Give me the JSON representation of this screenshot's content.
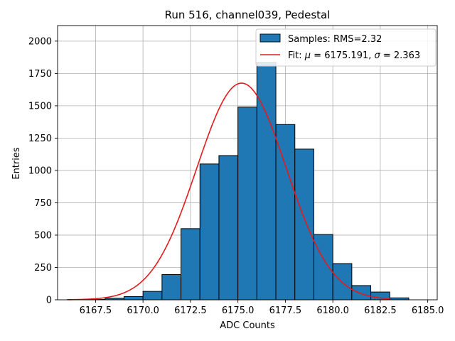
{
  "chart_data": {
    "type": "bar",
    "title": "Run 516, channel039, Pedestal",
    "xlabel": "ADC Counts",
    "ylabel": "Entries",
    "xlim": [
      6165.5,
      6185.5
    ],
    "ylim": [
      0,
      2120
    ],
    "grid": true,
    "legend_position": "top-right",
    "x_ticks": [
      6167.5,
      6170.0,
      6172.5,
      6175.0,
      6177.5,
      6180.0,
      6182.5,
      6185.0
    ],
    "x_tick_labels": [
      "6167.5",
      "6170.0",
      "6172.5",
      "6175.0",
      "6177.5",
      "6180.0",
      "6182.5",
      "6185.0"
    ],
    "y_ticks": [
      0,
      250,
      500,
      750,
      1000,
      1250,
      1500,
      1750,
      2000
    ],
    "y_tick_labels": [
      "0",
      "250",
      "500",
      "750",
      "1000",
      "1250",
      "1500",
      "1750",
      "2000"
    ],
    "histogram": {
      "name": "Samples: RMS=2.32",
      "color": "#1f77b4",
      "edge_color": "#000000",
      "bins": [
        {
          "x0": 6167,
          "x1": 6168,
          "count": 3
        },
        {
          "x0": 6168,
          "x1": 6169,
          "count": 12
        },
        {
          "x0": 6169,
          "x1": 6170,
          "count": 25
        },
        {
          "x0": 6170,
          "x1": 6171,
          "count": 65
        },
        {
          "x0": 6171,
          "x1": 6172,
          "count": 195
        },
        {
          "x0": 6172,
          "x1": 6173,
          "count": 550
        },
        {
          "x0": 6173,
          "x1": 6174,
          "count": 1050
        },
        {
          "x0": 6174,
          "x1": 6175,
          "count": 1115
        },
        {
          "x0": 6175,
          "x1": 6176,
          "count": 1490
        },
        {
          "x0": 6176,
          "x1": 6177,
          "count": 1835
        },
        {
          "x0": 6177,
          "x1": 6178,
          "count": 1355
        },
        {
          "x0": 6178,
          "x1": 6179,
          "count": 1165
        },
        {
          "x0": 6179,
          "x1": 6180,
          "count": 505
        },
        {
          "x0": 6180,
          "x1": 6181,
          "count": 280
        },
        {
          "x0": 6181,
          "x1": 6182,
          "count": 110
        },
        {
          "x0": 6182,
          "x1": 6183,
          "count": 60
        },
        {
          "x0": 6183,
          "x1": 6184,
          "count": 15
        }
      ]
    },
    "fit": {
      "name_prefix": "Fit: ",
      "label_mu": "μ",
      "label_mu_value": " = 6175.191, ",
      "label_sigma": "σ",
      "label_sigma_value": " = 2.363",
      "color": "#e41a1c",
      "mu": 6175.191,
      "sigma": 2.363,
      "amplitude": 1675,
      "x_range": [
        6166,
        6183
      ]
    }
  }
}
